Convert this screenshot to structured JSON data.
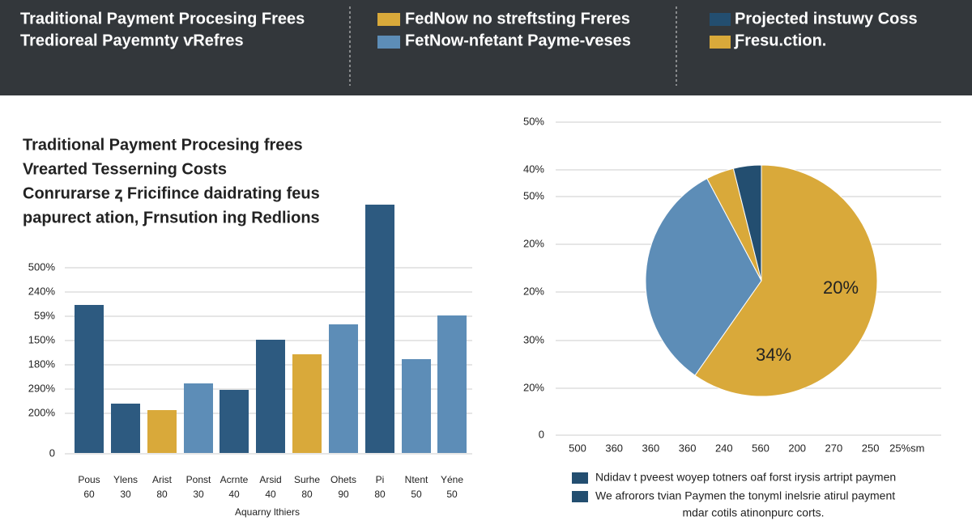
{
  "header": {
    "left": [
      "Traditional Payment Procesing Frees",
      "Tredioreal Payemnty ⱱRefres"
    ],
    "middle": [
      "FedNow no streftsting Freres",
      "FetNow-nfetant Payme-ⱱeses"
    ],
    "right": [
      "Projected instuwy Coss",
      "Ƒresu.ction."
    ]
  },
  "left_panel": {
    "title_lines": [
      "Traditional Payment Procesing frees",
      "Vrearted Tesserning Costs",
      "Conrurarse ⱬ Fricifince daidrating feus",
      "papurect ation, Ƒrnsution ing Redlions"
    ],
    "y_labels": [
      "500%",
      "240%",
      "59%",
      "150%",
      "180%",
      "290%",
      "200%",
      "0"
    ],
    "categories": [
      [
        "Pous",
        "60"
      ],
      [
        "Ylens",
        "30"
      ],
      [
        "Arist",
        "80"
      ],
      [
        "Ponst",
        "30"
      ],
      [
        "Acrnte",
        "40"
      ],
      [
        "Arsid",
        "40"
      ],
      [
        "Surhe",
        "80"
      ],
      [
        "Ohets",
        "90"
      ],
      [
        "Pi",
        "80"
      ],
      [
        "Ntent",
        "50"
      ],
      [
        "Yéne",
        "50"
      ]
    ],
    "axis_title": "Aquarny lthiers"
  },
  "right_panel": {
    "y_labels": [
      "50%",
      "40%",
      "50%",
      "20%",
      "20%",
      "30%",
      "20%",
      "0"
    ],
    "x_labels": [
      "500",
      "360",
      "360",
      "360",
      "240",
      "560",
      "200",
      "270",
      "250",
      "25%ѕm"
    ],
    "pie_labels": [
      "20%",
      "34%"
    ],
    "legend": [
      "Ndidav t pveest woyep totners oaf forst irysis artript paymen",
      "We afrorors tvian Paymen the tonyml inelsrie atirul payment",
      "mdar cotils atinonpurc corts."
    ]
  }
}
